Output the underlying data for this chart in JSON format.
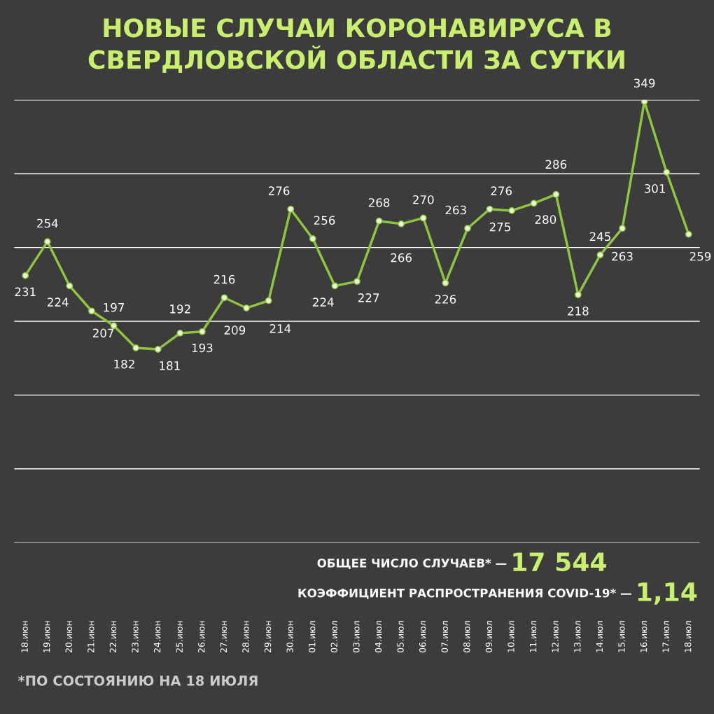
{
  "chart_data": {
    "type": "line",
    "title": "НОВЫЕ СЛУЧАИ КОРОНАВИРУСА В СВЕРДЛОВСКОЙ ОБЛАСТИ ЗА СУТКИ",
    "categories": [
      "18.июн",
      "19.июн",
      "20.июн",
      "21.июн",
      "22.июн",
      "23.июн",
      "24.июн",
      "25.июн",
      "26.июн",
      "27.июн",
      "28.июн",
      "29.июн",
      "30.июн",
      "01.июл",
      "02.июл",
      "03.июл",
      "04.июл",
      "05.июл",
      "06.июл",
      "07.июл",
      "08.июл",
      "09.июл",
      "10.июл",
      "11.июл",
      "12.июл",
      "13.июл",
      "14.июл",
      "15.июл",
      "16.июл",
      "17.июл",
      "18.июл"
    ],
    "series": [
      {
        "color": "#8dc63f",
        "values": [
          231,
          254,
          224,
          207,
          197,
          182,
          181,
          192,
          193,
          216,
          209,
          214,
          276,
          256,
          224,
          227,
          268,
          266,
          270,
          226,
          263,
          276,
          275,
          280,
          286,
          218,
          245,
          263,
          349,
          301,
          259
        ]
      }
    ],
    "ylim": [
      50,
      350
    ],
    "yticks": [
      {
        "value": 50,
        "label": null
      },
      {
        "value": 100,
        "label": null
      },
      {
        "value": 150,
        "label": null
      },
      {
        "value": 200,
        "label": null
      },
      {
        "value": 250,
        "label": null
      },
      {
        "value": 300,
        "label": null
      },
      {
        "value": 350,
        "label": null
      }
    ],
    "tick_labels": "x",
    "grid": "y",
    "marker": "circle",
    "line_style": "solid",
    "data_labels": true,
    "annotations": [
      "ОБЩЕЕ ЧИСЛО СЛУЧАЕВ* —",
      "17 544",
      "КОЭФФИЦИЕНТ РАСПРОСТРАНЕНИЯ COVID-19* —",
      "1,14",
      "*ПО СОСТОЯНИЮ НА 18 ИЮЛЯ"
    ]
  }
}
